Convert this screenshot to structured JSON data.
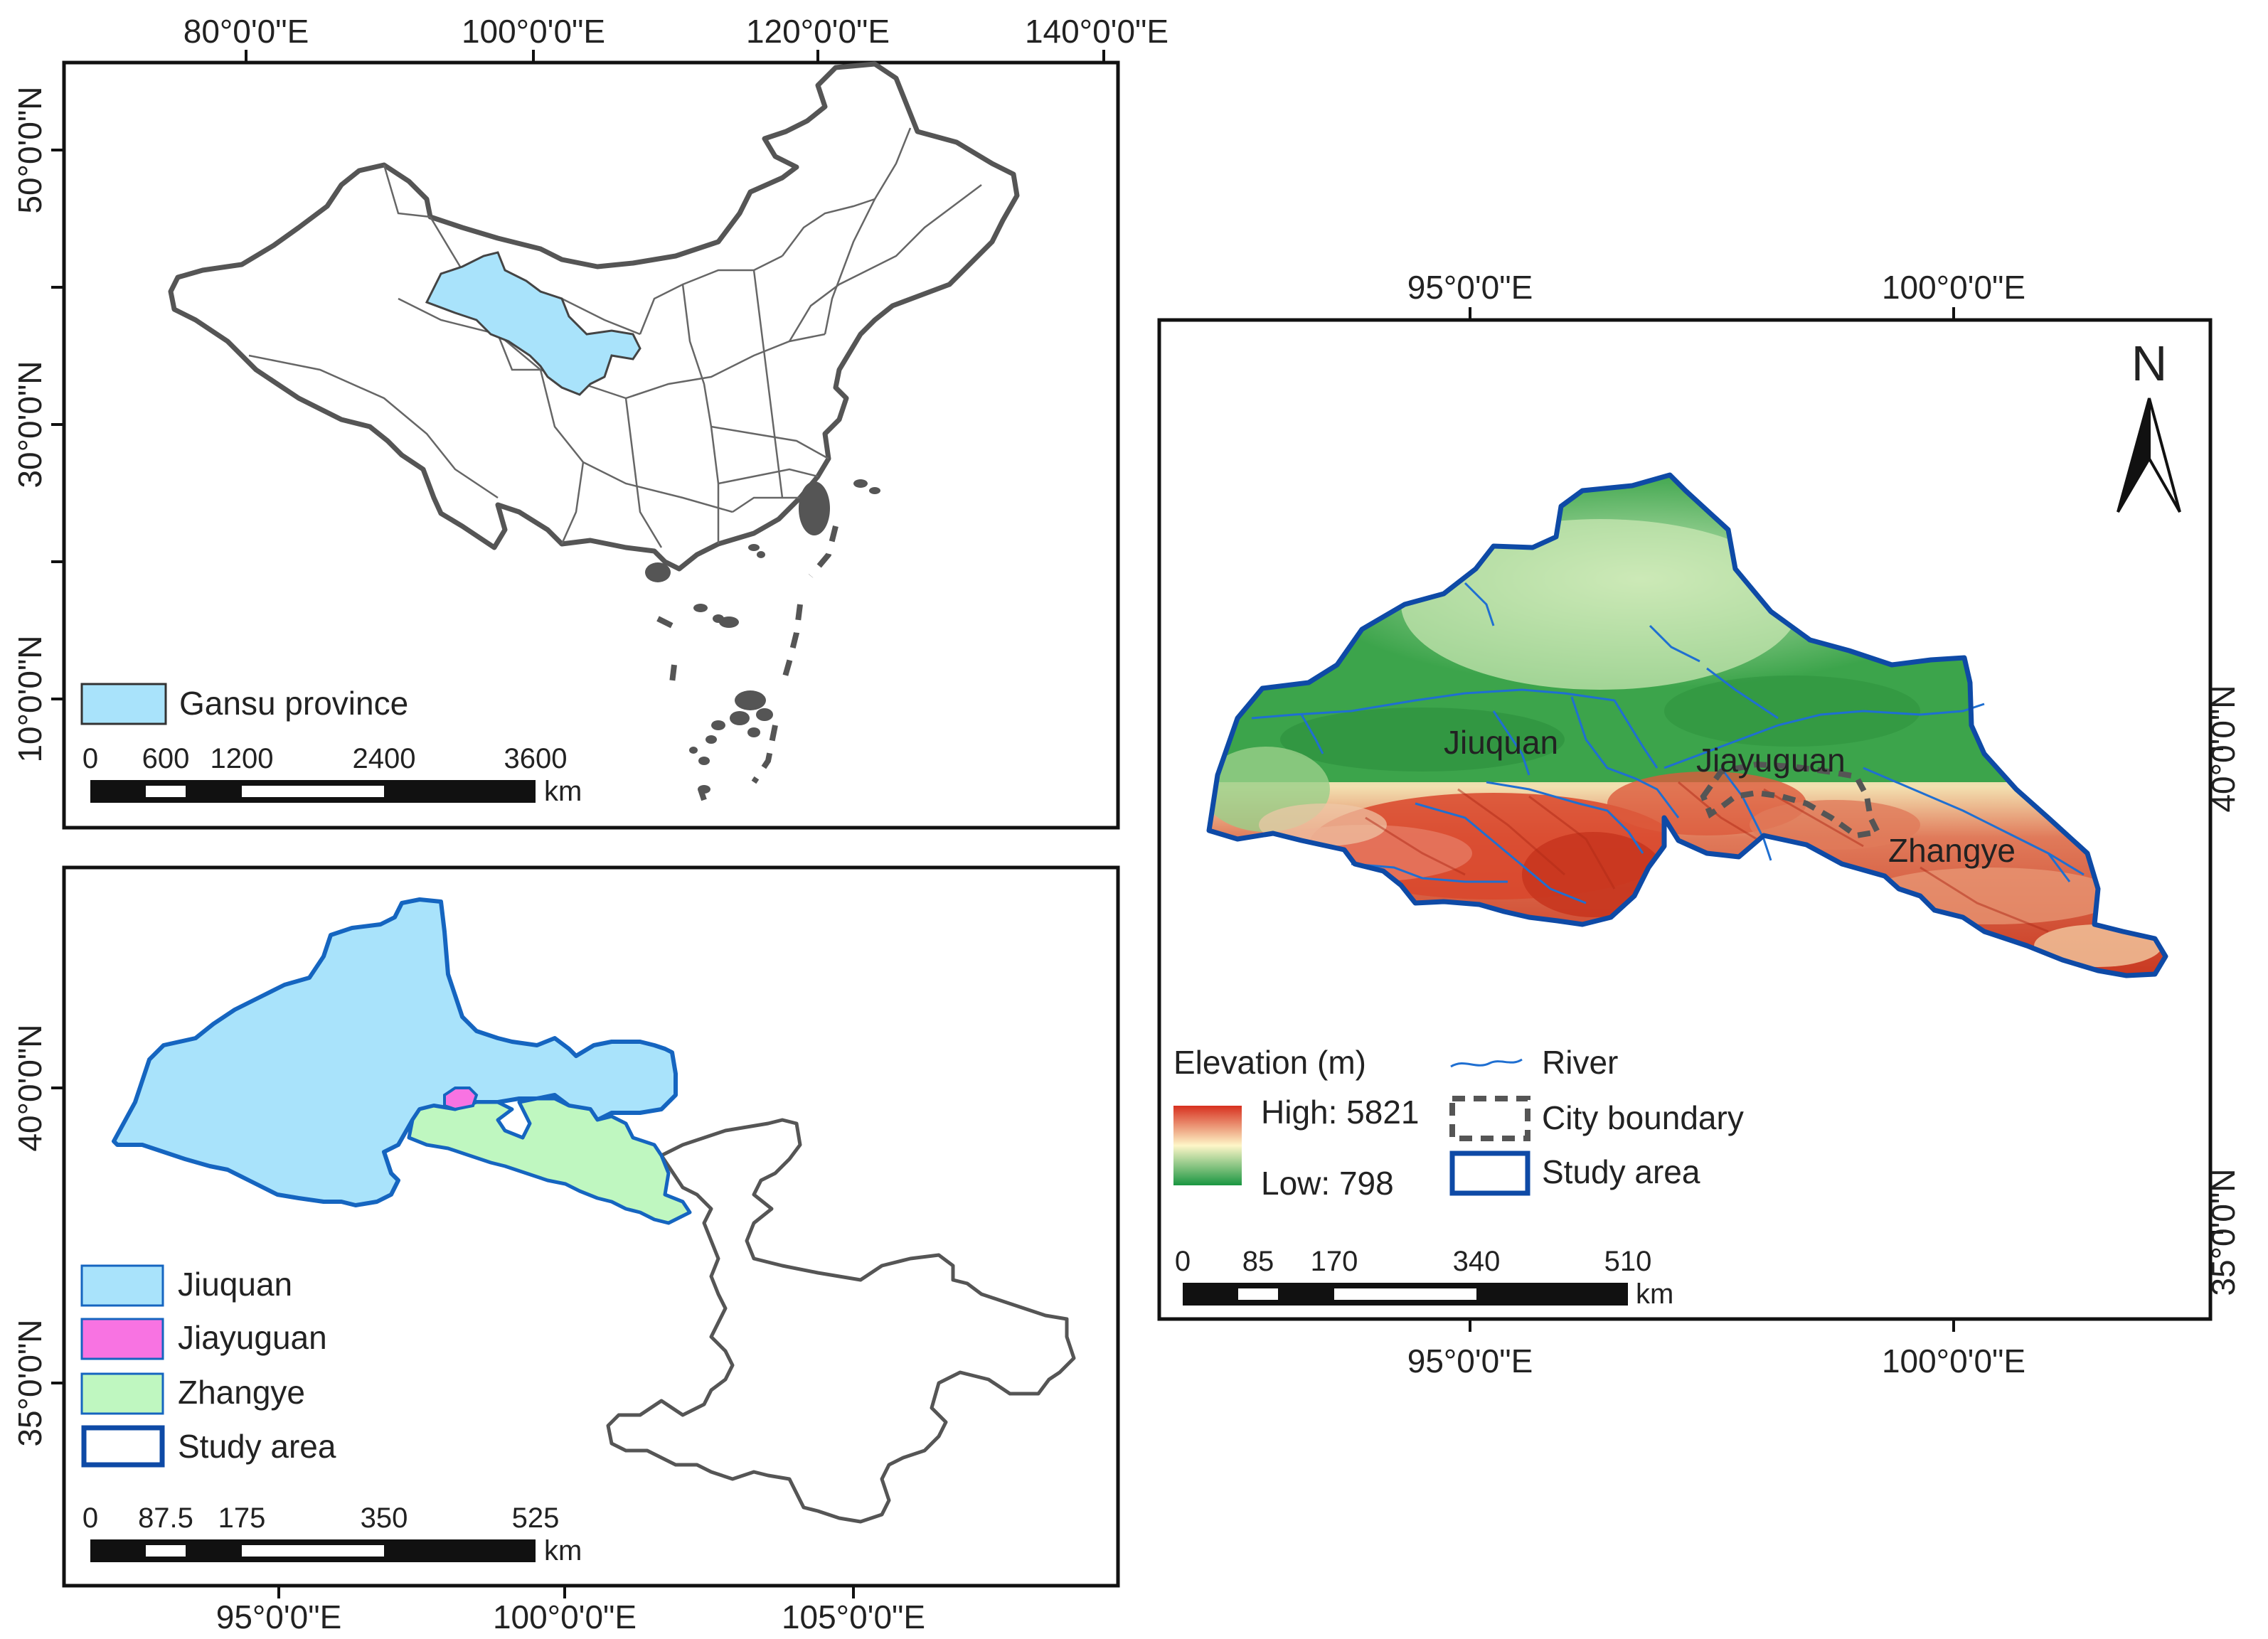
{
  "panel_china": {
    "top_ticks": [
      "80°0'0\"E",
      "100°0'0\"E",
      "120°0'0\"E",
      "140°0'0\"E"
    ],
    "left_ticks": [
      "50°0'0\"N",
      "30°0'0\"N",
      "10°0'0\"N"
    ],
    "legend_label": "Gansu province",
    "scale_ticks": [
      "0",
      "600",
      "1200",
      "2400",
      "3600"
    ],
    "scale_unit": "km",
    "colors": {
      "gansu_fill": "#a9e3fb",
      "boundary": "#555555"
    }
  },
  "panel_gansu": {
    "bottom_ticks": [
      "95°0'0\"E",
      "100°0'0\"E",
      "105°0'0\"E"
    ],
    "left_ticks": [
      "40°0'0\"N",
      "35°0'0\"N"
    ],
    "legend": [
      {
        "label": "Jiuquan",
        "color": "#a9e3fb"
      },
      {
        "label": "Jiayuguan",
        "color": "#f873e2"
      },
      {
        "label": "Zhangye",
        "color": "#bff7c0"
      },
      {
        "label": "Study area",
        "color": "#ffffff"
      }
    ],
    "scale_ticks": [
      "0",
      "87.5",
      "175",
      "350",
      "525"
    ],
    "scale_unit": "km"
  },
  "panel_study": {
    "top_ticks": [
      "95°0'0\"E",
      "100°0'0\"E"
    ],
    "bottom_ticks": [
      "95°0'0\"E",
      "100°0'0\"E"
    ],
    "right_ticks": [
      "40°0'0\"N",
      "35°0'0\"N"
    ],
    "north_label": "N",
    "place_labels": [
      "Jiuquan",
      "Jiayuguan",
      "Zhangye"
    ],
    "elevation_title": "Elevation (m)",
    "elevation_high": "High: 5821",
    "elevation_low": "Low: 798",
    "legend_river": "River",
    "legend_city": "City boundary",
    "legend_study": "Study area",
    "scale_ticks": [
      "0",
      "85",
      "170",
      "340",
      "510"
    ],
    "scale_unit": "km",
    "colors": {
      "river": "#1f6fd1",
      "study_outline": "#0e4aa6",
      "high": "#d7301f",
      "mid": "#fef6c8",
      "low": "#1a9641"
    }
  }
}
